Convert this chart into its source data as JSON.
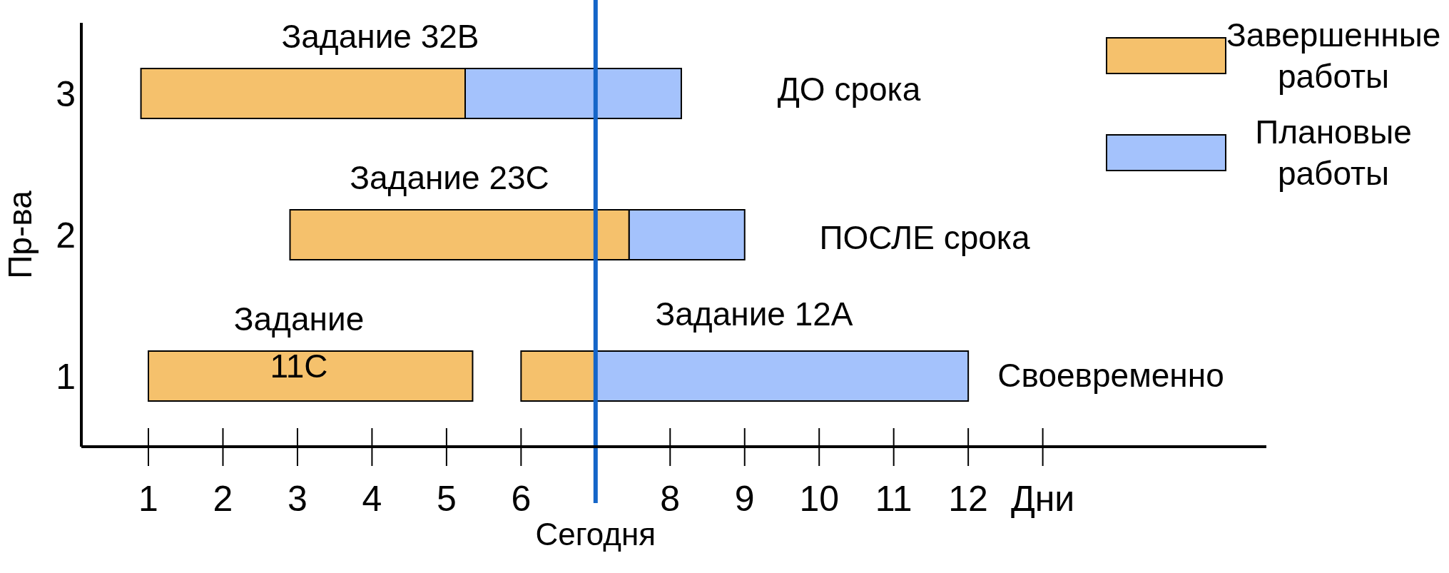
{
  "chart_data": {
    "type": "bar",
    "orientation": "horizontal",
    "categories": [
      "3",
      "2",
      "1"
    ],
    "ylabel": "Пр-ва",
    "series": [
      {
        "name": "Завершенные работы",
        "color": "#f5c16c",
        "base": [
          0.9,
          2.9,
          1.0
        ],
        "values": [
          4.35,
          4.55,
          4.35
        ]
      },
      {
        "color": "#f5c16c",
        "base": [
          null,
          null,
          6.0
        ],
        "values": [
          null,
          null,
          1.0
        ]
      },
      {
        "name": "Плановые работы",
        "color": "#a4c2fc",
        "base": [
          5.25,
          7.45,
          7.0
        ],
        "values": [
          2.9,
          1.55,
          5.0
        ]
      }
    ],
    "xlim": [
      0.1,
      16
    ],
    "xticks": [
      1,
      2,
      3,
      4,
      5,
      6,
      8,
      9,
      10,
      11,
      12,
      {
        "value": 13,
        "label": "Дни"
      }
    ],
    "ref_lines": [
      {
        "axis": "x",
        "value": 7,
        "label": "Сегодня",
        "color": "#1565c8"
      }
    ],
    "annotations": [
      "Задание 32В",
      "ДО срока",
      "Задание 23С",
      "ПОСЛЕ срока",
      "Задание 11С",
      "Задание 12А",
      "Своевременно"
    ],
    "legend": "top right",
    "grid": false
  }
}
